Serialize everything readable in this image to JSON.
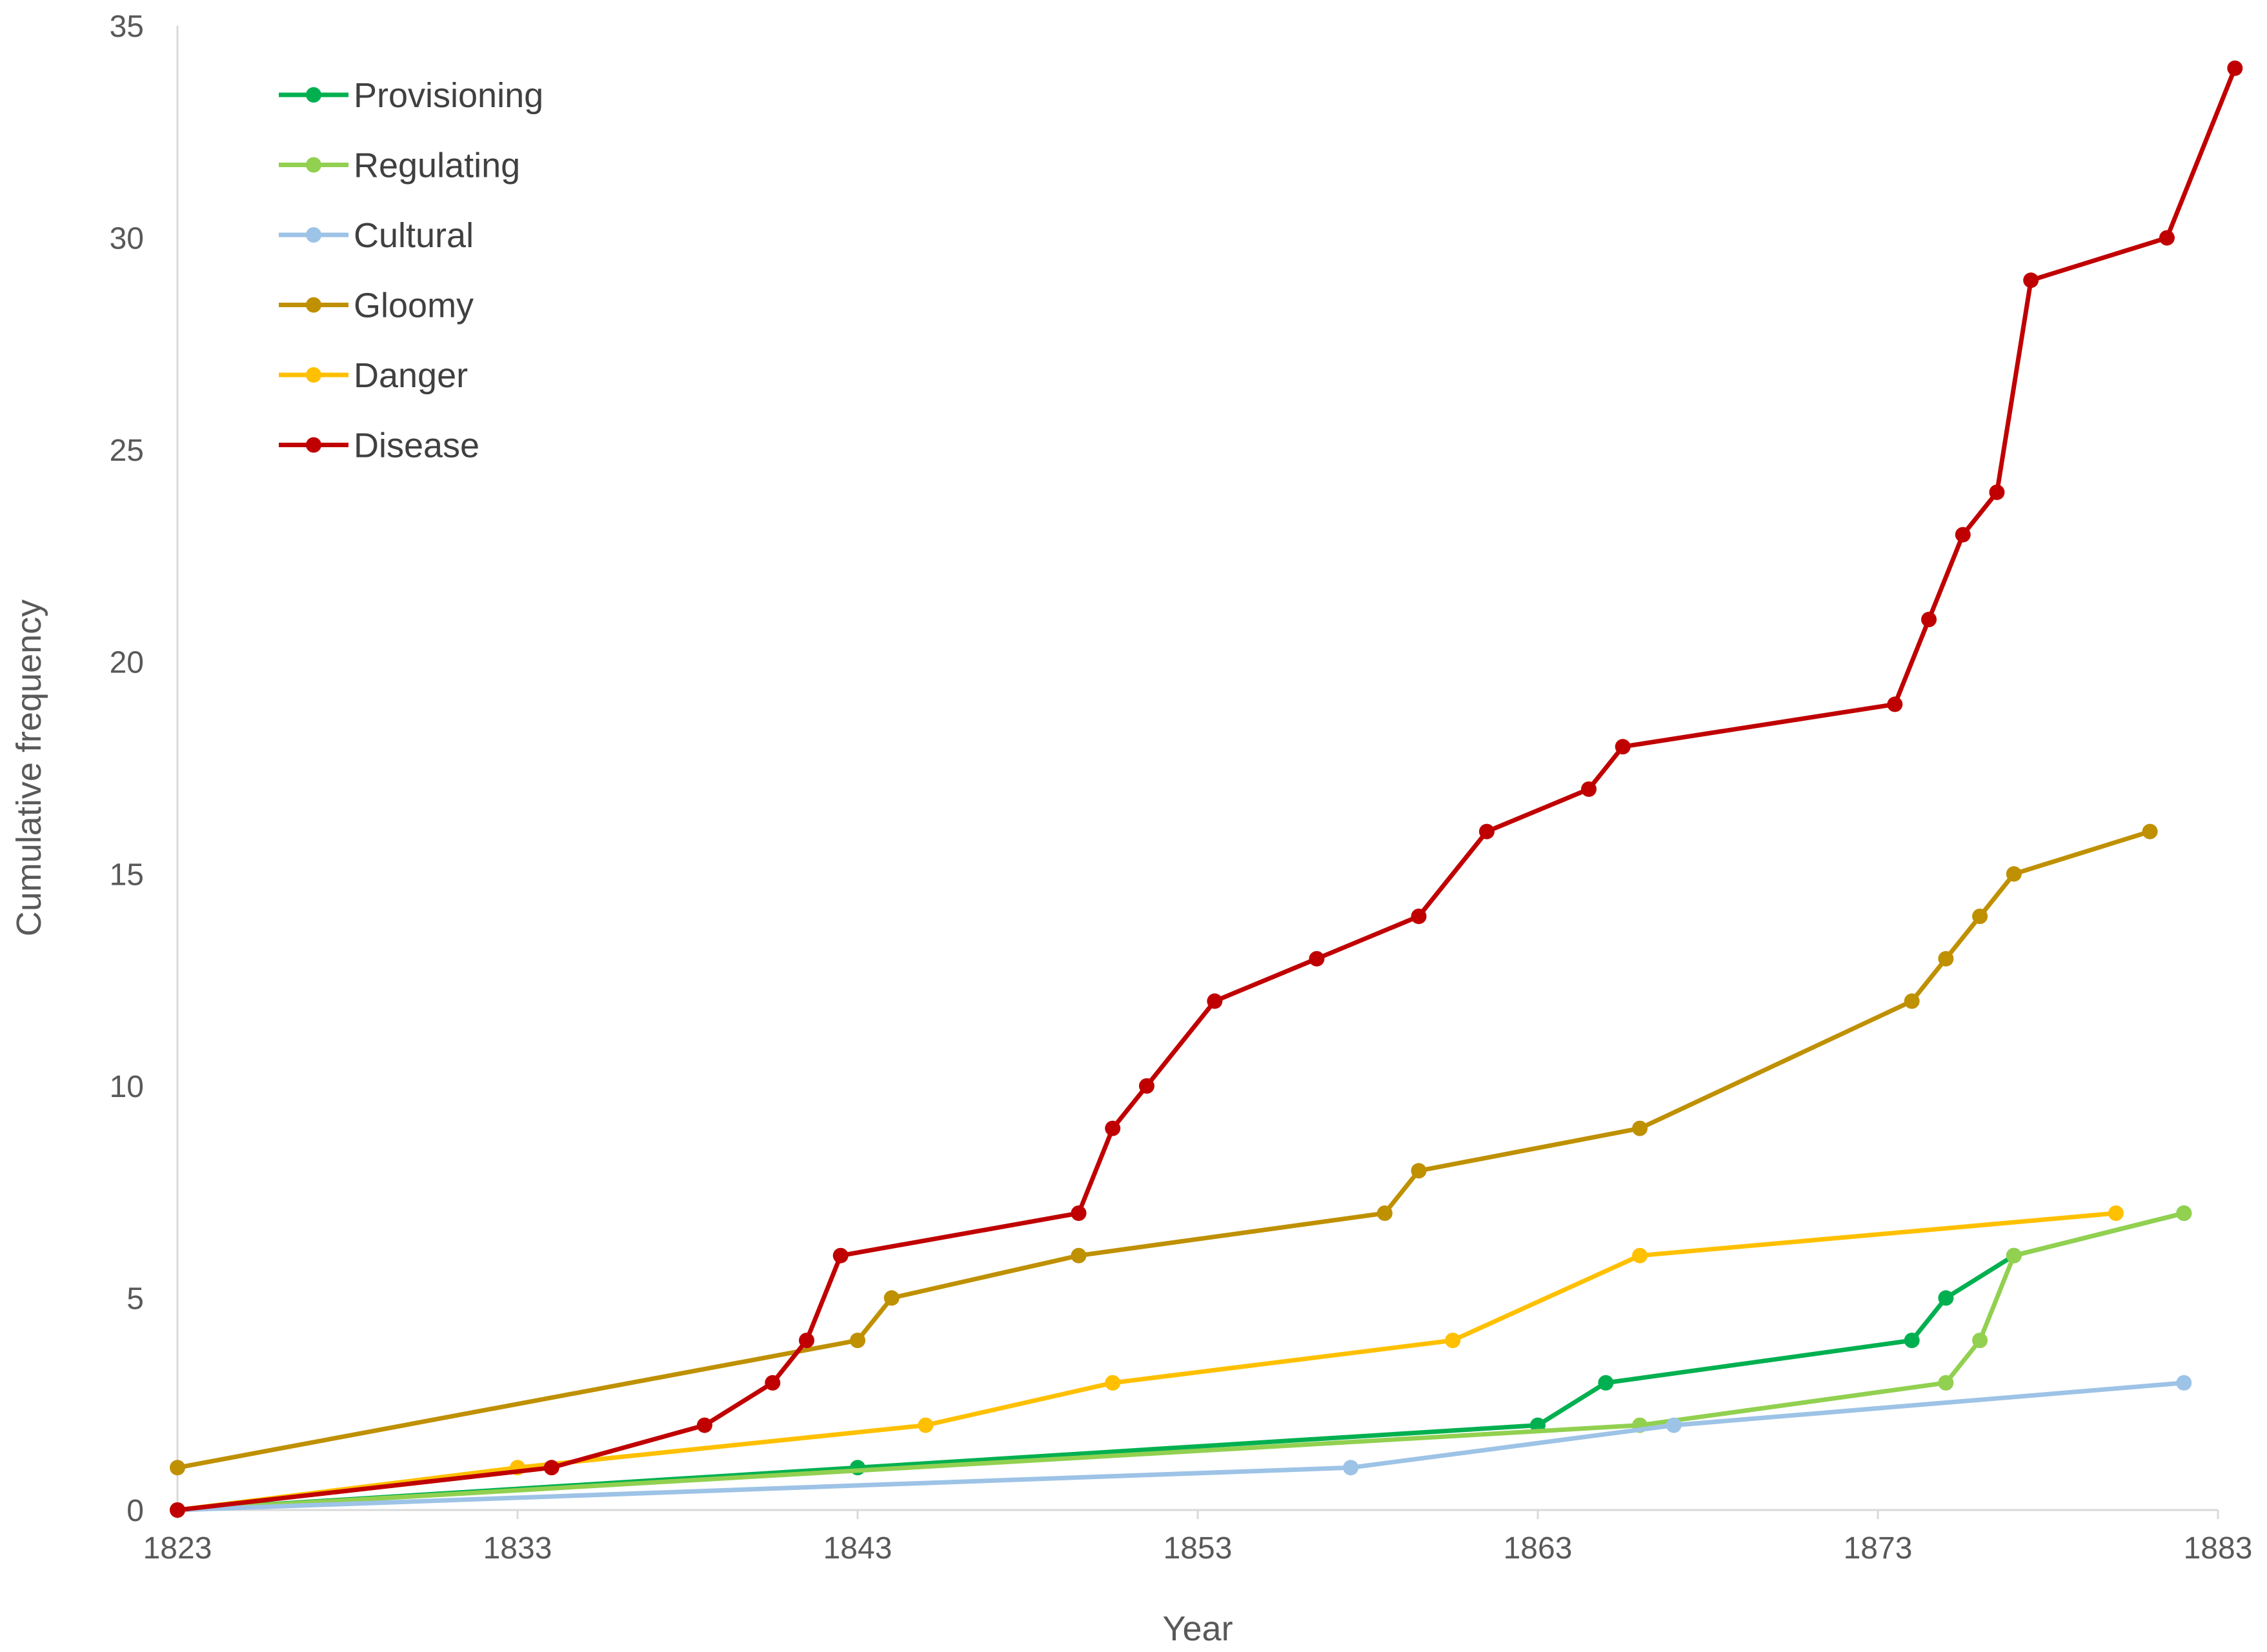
{
  "chart_data": {
    "type": "line",
    "title": "",
    "xlabel": "Year",
    "ylabel": "Cumulative frequency",
    "xlim": [
      1823,
      1883
    ],
    "ylim": [
      0,
      35
    ],
    "xticks": [
      1823,
      1833,
      1843,
      1853,
      1863,
      1873,
      1883
    ],
    "yticks": [
      0,
      5,
      10,
      15,
      20,
      25,
      30,
      35
    ],
    "grid": false,
    "legend_position": "top-left",
    "series": [
      {
        "name": "Provisioning",
        "color": "#00b050",
        "points": [
          [
            1823,
            0
          ],
          [
            1843,
            1
          ],
          [
            1863,
            2
          ],
          [
            1865,
            3
          ],
          [
            1874,
            4
          ],
          [
            1875,
            5
          ],
          [
            1877,
            6
          ],
          [
            1882,
            7
          ]
        ]
      },
      {
        "name": "Regulating",
        "color": "#92d050",
        "points": [
          [
            1823,
            0
          ],
          [
            1866,
            2
          ],
          [
            1875,
            3
          ],
          [
            1876,
            4
          ],
          [
            1877,
            6
          ],
          [
            1882,
            7
          ]
        ]
      },
      {
        "name": "Cultural",
        "color": "#9dc3e6",
        "points": [
          [
            1823,
            0
          ],
          [
            1857.5,
            1
          ],
          [
            1867,
            2
          ],
          [
            1882,
            3
          ]
        ]
      },
      {
        "name": "Gloomy",
        "color": "#bf9000",
        "points": [
          [
            1823,
            1
          ],
          [
            1843,
            4
          ],
          [
            1844,
            5
          ],
          [
            1849.5,
            6
          ],
          [
            1858.5,
            7
          ],
          [
            1859.5,
            8
          ],
          [
            1866,
            9
          ],
          [
            1874,
            12
          ],
          [
            1875,
            13
          ],
          [
            1876,
            14
          ],
          [
            1877,
            15
          ],
          [
            1881,
            16
          ]
        ]
      },
      {
        "name": "Danger",
        "color": "#ffc000",
        "points": [
          [
            1823,
            0
          ],
          [
            1833,
            1
          ],
          [
            1845,
            2
          ],
          [
            1850.5,
            3
          ],
          [
            1860.5,
            4
          ],
          [
            1866,
            6
          ],
          [
            1880,
            7
          ]
        ]
      },
      {
        "name": "Disease",
        "color": "#c00000",
        "points": [
          [
            1823,
            0
          ],
          [
            1834,
            1
          ],
          [
            1838.5,
            2
          ],
          [
            1840.5,
            3
          ],
          [
            1841.5,
            4
          ],
          [
            1842.5,
            6
          ],
          [
            1849.5,
            7
          ],
          [
            1850.5,
            9
          ],
          [
            1851.5,
            10
          ],
          [
            1853.5,
            12
          ],
          [
            1856.5,
            13
          ],
          [
            1859.5,
            14
          ],
          [
            1861.5,
            16
          ],
          [
            1864.5,
            17
          ],
          [
            1865.5,
            18
          ],
          [
            1873.5,
            19
          ],
          [
            1874.5,
            21
          ],
          [
            1875.5,
            23
          ],
          [
            1876.5,
            24
          ],
          [
            1877.5,
            29
          ],
          [
            1881.5,
            30
          ],
          [
            1883.5,
            34
          ]
        ]
      }
    ]
  }
}
